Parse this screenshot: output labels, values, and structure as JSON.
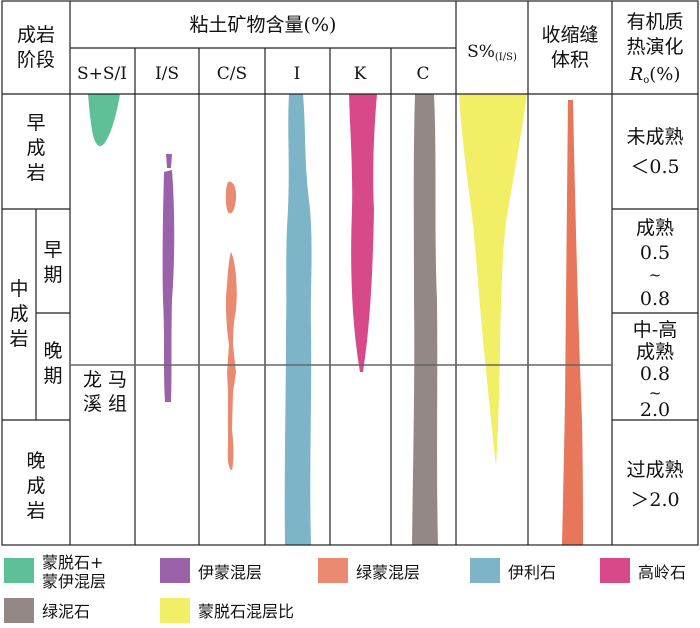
{
  "headers": {
    "stage": [
      "成岩",
      "阶段"
    ],
    "clay_group": "粘土矿物含量(%)",
    "columns": [
      "S+S/I",
      "I/S",
      "C/S",
      "I",
      "K",
      "C"
    ],
    "s_ratio_main": "S%",
    "s_ratio_sub": "(I/S)",
    "shrink": [
      "收缩缝",
      "体积"
    ],
    "organic": [
      "有机质",
      "热演化"
    ],
    "ro_r": "R",
    "ro_sub": "o",
    "ro_unit": "(%)"
  },
  "stages": {
    "early": [
      "早",
      "成",
      "岩"
    ],
    "middle": [
      "中",
      "成",
      "岩"
    ],
    "middle_early": [
      "早",
      "期"
    ],
    "middle_late": [
      "晚",
      "期"
    ],
    "late": [
      "晚",
      "成",
      "岩"
    ]
  },
  "formation": [
    "龙 马",
    "溪 组"
  ],
  "maturity": {
    "immature": [
      "未成熟",
      "＜0.5"
    ],
    "mature": [
      "成熟",
      "0.5",
      "~",
      "0.8"
    ],
    "mid_high": [
      "中-高",
      "成熟",
      "0.8",
      "~",
      "2.0"
    ],
    "over": [
      "过成熟",
      "＞2.0"
    ]
  },
  "legend": [
    {
      "label": [
        "蒙脱石+",
        "蒙伊混层"
      ],
      "color": "#5fbf96"
    },
    {
      "label": [
        "伊蒙混层"
      ],
      "color": "#9a62a8"
    },
    {
      "label": [
        "绿蒙混层"
      ],
      "color": "#ea8a70"
    },
    {
      "label": [
        "伊利石"
      ],
      "color": "#7eb4c8"
    },
    {
      "label": [
        "高岭石"
      ],
      "color": "#d8498a"
    },
    {
      "label": [
        "绿泥石"
      ],
      "color": "#948887"
    },
    {
      "label": [
        "蒙脱石混层比"
      ],
      "color": "#f2ee66"
    }
  ],
  "colors": {
    "smectite": "#5fbf96",
    "illite_smectite": "#9a62a8",
    "chlorite_smectite": "#ea8a70",
    "illite": "#7eb4c8",
    "kaolinite": "#d8498a",
    "chlorite": "#948887",
    "s_ratio": "#f2ee66",
    "shrink": "#e8765a"
  }
}
